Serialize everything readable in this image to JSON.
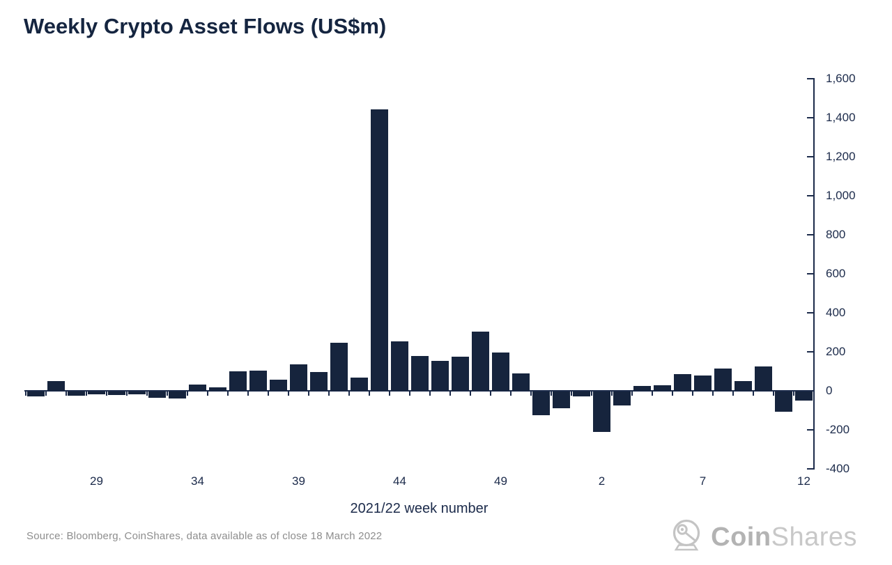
{
  "title": "Weekly Crypto Asset Flows (US$m)",
  "colors": {
    "bar": "#16243d",
    "axis": "#1b2a4a",
    "title_text": "#152540",
    "source_text": "#8d8d8d",
    "logo_gray_bold": "#b3b3b3",
    "logo_gray_light": "#c8c8c8",
    "background": "#ffffff"
  },
  "chart_data": {
    "type": "bar",
    "title": "Weekly Crypto Asset Flows (US$m)",
    "xlabel": "2021/22 week number",
    "ylabel": "",
    "ylim": [
      -400,
      1600
    ],
    "grid": false,
    "legend": "none",
    "y_axis_position": "right",
    "categories": [
      "26",
      "27",
      "28",
      "29",
      "30",
      "31",
      "32",
      "33",
      "34",
      "35",
      "36",
      "37",
      "38",
      "39",
      "40",
      "41",
      "42",
      "43",
      "44",
      "45",
      "46",
      "47",
      "48",
      "49",
      "50",
      "51",
      "52",
      "1",
      "2",
      "3",
      "4",
      "5",
      "6",
      "7",
      "8",
      "9",
      "10",
      "11",
      "12"
    ],
    "values": [
      -25,
      49,
      -20,
      -15,
      -19,
      -15,
      -32,
      -35,
      31,
      18,
      101,
      105,
      56,
      135,
      96,
      246,
      68,
      1444,
      254,
      179,
      155,
      175,
      304,
      196,
      89,
      -122,
      -87,
      -26,
      -206,
      -70,
      24,
      27,
      87,
      77,
      113,
      49,
      125,
      -104,
      -46
    ],
    "xticks_shown_indices": [
      3,
      8,
      13,
      18,
      23,
      28,
      33,
      38
    ],
    "xticks_shown_labels": [
      "29",
      "34",
      "39",
      "44",
      "49",
      "2",
      "7",
      "12"
    ],
    "yticks": [
      {
        "value": -400,
        "label": "-400"
      },
      {
        "value": -200,
        "label": "-200"
      },
      {
        "value": 0,
        "label": "0"
      },
      {
        "value": 200,
        "label": "200"
      },
      {
        "value": 400,
        "label": "400"
      },
      {
        "value": 600,
        "label": "600"
      },
      {
        "value": 800,
        "label": "800"
      },
      {
        "value": 1000,
        "label": "1,000"
      },
      {
        "value": 1200,
        "label": "1,200"
      },
      {
        "value": 1400,
        "label": "1,400"
      },
      {
        "value": 1600,
        "label": "1,600"
      }
    ]
  },
  "footer": {
    "source": "Source: Bloomberg, CoinShares, data available as of close 18 March 2022",
    "logo": {
      "icon": "coinshares-helmet-icon",
      "text_bold": "Coin",
      "text_light": "Shares"
    }
  }
}
